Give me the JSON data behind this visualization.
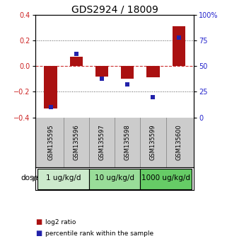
{
  "title": "GDS2924 / 18009",
  "samples": [
    "GSM135595",
    "GSM135596",
    "GSM135597",
    "GSM135598",
    "GSM135599",
    "GSM135600"
  ],
  "log2_ratio_values": [
    -0.33,
    0.075,
    -0.08,
    -0.095,
    -0.085,
    0.31
  ],
  "percentile_values": [
    10,
    62,
    38,
    32,
    20,
    78
  ],
  "ylim_left": [
    -0.4,
    0.4
  ],
  "ylim_right": [
    0,
    100
  ],
  "yticks_left": [
    -0.4,
    -0.2,
    0.0,
    0.2,
    0.4
  ],
  "yticks_right": [
    0,
    25,
    50,
    75,
    100
  ],
  "dose_groups": [
    {
      "label": "1 ug/kg/d",
      "color": "#cceacc"
    },
    {
      "label": "10 ug/kg/d",
      "color": "#99dd99"
    },
    {
      "label": "1000 ug/kg/d",
      "color": "#66cc66"
    }
  ],
  "bar_color": "#aa1111",
  "dot_color": "#2222aa",
  "bar_width": 0.5,
  "dot_size": 22,
  "hline_color": "#cc3333",
  "grid_color": "#555555",
  "background_color": "#ffffff",
  "plot_bg": "#ffffff",
  "sample_bg": "#cccccc",
  "legend_bar_label": "log2 ratio",
  "legend_dot_label": "percentile rank within the sample",
  "dose_label": "dose",
  "ylabel_left_color": "#cc2222",
  "ylabel_right_color": "#2222cc",
  "title_fontsize": 10,
  "tick_fontsize": 7,
  "sample_fontsize": 6,
  "dose_fontsize": 7.5,
  "legend_fontsize": 6.5
}
